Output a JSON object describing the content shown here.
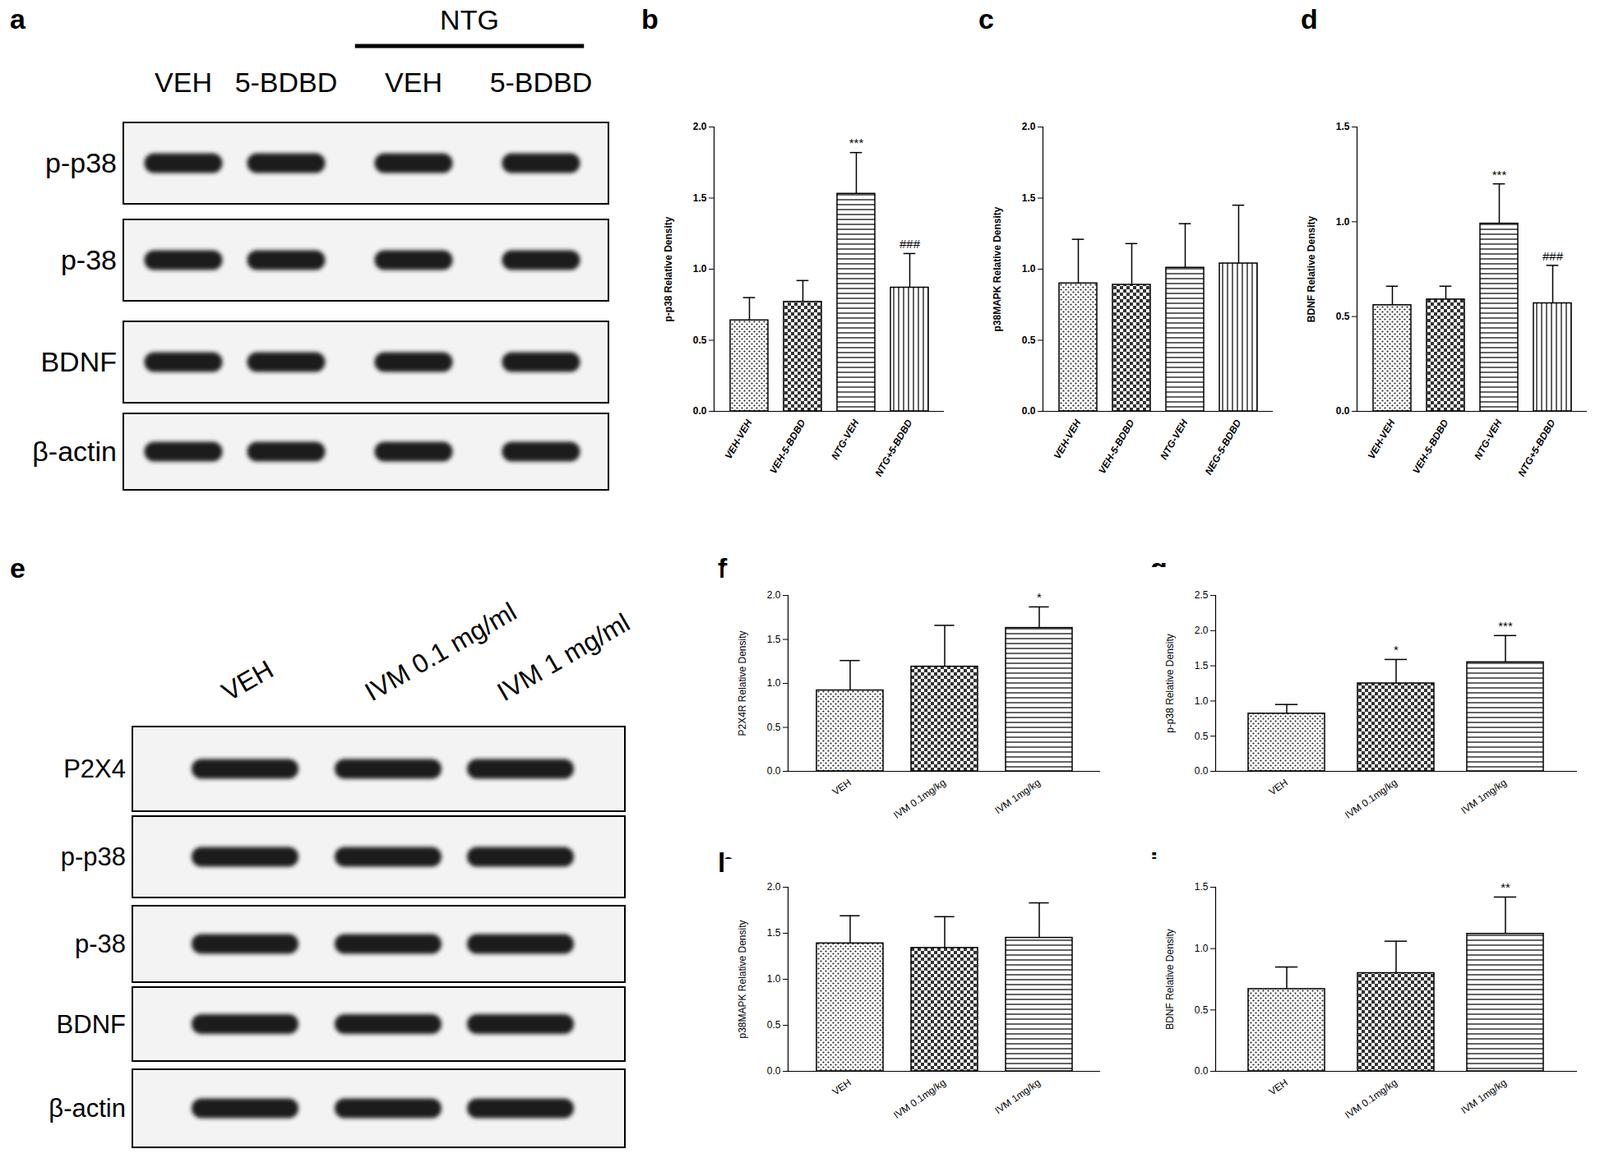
{
  "blots": [
    {
      "panel_label": "a",
      "group_label": "NTG",
      "group_columns": [
        2,
        3
      ],
      "columns": [
        "VEH",
        "5-BDBD",
        "VEH",
        "5-BDBD"
      ],
      "rows": [
        "p-p38",
        "p-38",
        "BDNF",
        "β-actin"
      ]
    },
    {
      "panel_label": "e",
      "columns": [
        "VEH",
        "IVM 0.1 mg/ml",
        "IVM 1 mg/ml"
      ],
      "rows": [
        "P2X4",
        "p-p38",
        "p-38",
        "BDNF",
        "β-actin"
      ]
    }
  ],
  "chart_data": [
    {
      "type": "bar",
      "panel_label": "b",
      "y_label": "p-p38 Relative Density",
      "categories": [
        "VEH-VEH",
        "VEH-5-BDBD",
        "NTG-VEH",
        "NTG+5-BDBD"
      ],
      "values": [
        0.64,
        0.77,
        1.53,
        0.87
      ],
      "errors": [
        0.16,
        0.15,
        0.29,
        0.24
      ],
      "annotations": [
        null,
        null,
        "***",
        "###"
      ],
      "color": "#000000",
      "ylim": [
        0,
        2
      ],
      "yticks": [
        {
          "value": 0,
          "label": "0.0"
        },
        {
          "value": 0.5,
          "label": "0.5"
        },
        {
          "value": 1,
          "label": "1.0"
        },
        {
          "value": 1.5,
          "label": "1.5"
        },
        {
          "value": 2,
          "label": "2.0"
        }
      ]
    },
    {
      "type": "bar",
      "panel_label": "c",
      "y_label": "p38MAPK Relative Density",
      "categories": [
        "VEH-VEH",
        "VEH-5-BDBD",
        "NTG-VEH",
        "NEG-5-BDBD"
      ],
      "values": [
        0.9,
        0.89,
        1.01,
        1.04
      ],
      "errors": [
        0.31,
        0.29,
        0.31,
        0.41
      ],
      "annotations": [
        null,
        null,
        null,
        null
      ],
      "color": "#000000",
      "ylim": [
        0,
        2
      ],
      "yticks": [
        {
          "value": 0,
          "label": "0.0"
        },
        {
          "value": 0.5,
          "label": "0.5"
        },
        {
          "value": 1,
          "label": "1.0"
        },
        {
          "value": 1.5,
          "label": "1.5"
        },
        {
          "value": 2,
          "label": "2.0"
        }
      ]
    },
    {
      "type": "bar",
      "panel_label": "d",
      "y_label": "BDNF Relative Density",
      "categories": [
        "VEH-VEH",
        "VEH-5-BDBD",
        "NTG-VEH",
        "NTG+5-BDBD"
      ],
      "values": [
        0.56,
        0.59,
        0.99,
        0.57
      ],
      "errors": [
        0.1,
        0.07,
        0.21,
        0.2
      ],
      "annotations": [
        null,
        null,
        "***",
        "###"
      ],
      "color": "#000000",
      "ylim": [
        0,
        1.5
      ],
      "yticks": [
        {
          "value": 0,
          "label": "0.0"
        },
        {
          "value": 0.5,
          "label": "0.5"
        },
        {
          "value": 1,
          "label": "1.0"
        },
        {
          "value": 1.5,
          "label": "1.5"
        }
      ]
    },
    {
      "type": "bar",
      "panel_label": "f",
      "y_label": "P2X4R Relative Density",
      "categories": [
        "VEH",
        "IVM 0.1mg/kg",
        "IVM 1mg/kg"
      ],
      "values": [
        0.92,
        1.19,
        1.63
      ],
      "errors": [
        0.34,
        0.47,
        0.24
      ],
      "annotations": [
        null,
        null,
        "*"
      ],
      "color": "#000000",
      "ylim": [
        0,
        2
      ],
      "yticks": [
        {
          "value": 0,
          "label": "0.0"
        },
        {
          "value": 0.5,
          "label": "0.5"
        },
        {
          "value": 1,
          "label": "1.0"
        },
        {
          "value": 1.5,
          "label": "1.5"
        },
        {
          "value": 2,
          "label": "2.0"
        }
      ]
    },
    {
      "type": "bar",
      "panel_label": "g",
      "y_label": "p-p38 Relative Density",
      "categories": [
        "VEH",
        "IVM 0.1mg/kg",
        "IVM 1mg/kg"
      ],
      "values": [
        0.82,
        1.25,
        1.55
      ],
      "errors": [
        0.13,
        0.34,
        0.38
      ],
      "annotations": [
        null,
        "*",
        "***"
      ],
      "color": "#000000",
      "ylim": [
        0,
        2.5
      ],
      "yticks": [
        {
          "value": 0,
          "label": "0.0"
        },
        {
          "value": 0.5,
          "label": "0.5"
        },
        {
          "value": 1,
          "label": "1.0"
        },
        {
          "value": 1.5,
          "label": "1.5"
        },
        {
          "value": 2,
          "label": "2.0"
        },
        {
          "value": 2.5,
          "label": "2.5"
        }
      ]
    },
    {
      "type": "bar",
      "panel_label": "h",
      "y_label": "p38MAPK Relative Density",
      "categories": [
        "VEH",
        "IVM 0.1mg/kg",
        "IVM 1mg/kg"
      ],
      "values": [
        1.39,
        1.34,
        1.45
      ],
      "errors": [
        0.3,
        0.34,
        0.38
      ],
      "annotations": [
        null,
        null,
        null
      ],
      "color": "#000000",
      "ylim": [
        0,
        2
      ],
      "yticks": [
        {
          "value": 0,
          "label": "0.0"
        },
        {
          "value": 0.5,
          "label": "0.5"
        },
        {
          "value": 1,
          "label": "1.0"
        },
        {
          "value": 1.5,
          "label": "1.5"
        },
        {
          "value": 2,
          "label": "2.0"
        }
      ]
    },
    {
      "type": "bar",
      "panel_label": "i",
      "y_label": "BDNF Relative Density",
      "categories": [
        "VEH",
        "IVM 0.1mg/kg",
        "IVM 1mg/kg"
      ],
      "values": [
        0.67,
        0.8,
        1.12
      ],
      "errors": [
        0.18,
        0.26,
        0.3
      ],
      "annotations": [
        null,
        null,
        "**"
      ],
      "color": "#000000",
      "ylim": [
        0,
        1.5
      ],
      "yticks": [
        {
          "value": 0,
          "label": "0.0"
        },
        {
          "value": 0.5,
          "label": "0.5"
        },
        {
          "value": 1,
          "label": "1.0"
        },
        {
          "value": 1.5,
          "label": "1.5"
        }
      ]
    }
  ]
}
